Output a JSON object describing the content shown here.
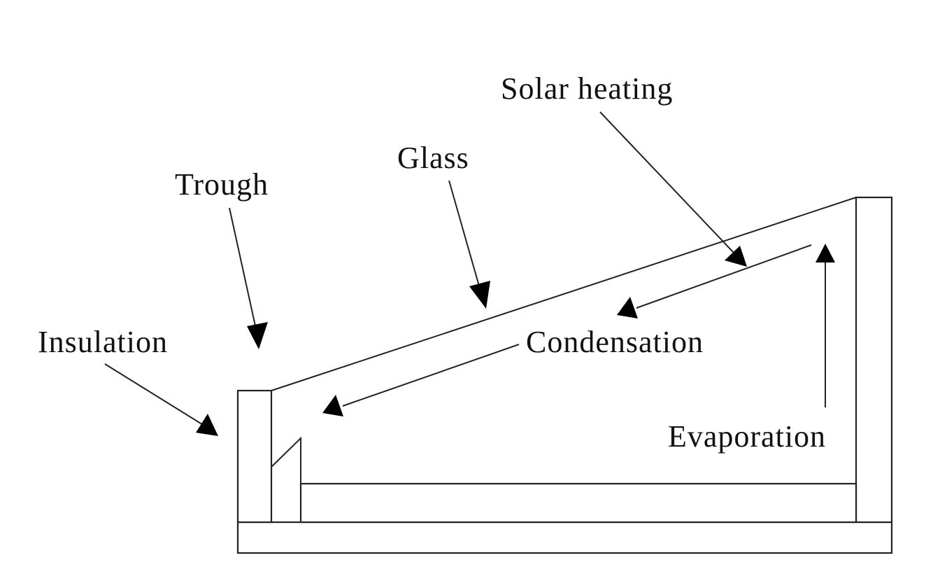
{
  "labels": {
    "solar_heating": "Solar heating",
    "glass": "Glass",
    "trough": "Trough",
    "insulation": "Insulation",
    "condensation": "Condensation",
    "evaporation": "Evaporation"
  },
  "colors": {
    "line": "#222222",
    "arrowhead": "#000000",
    "background": "#ffffff"
  }
}
